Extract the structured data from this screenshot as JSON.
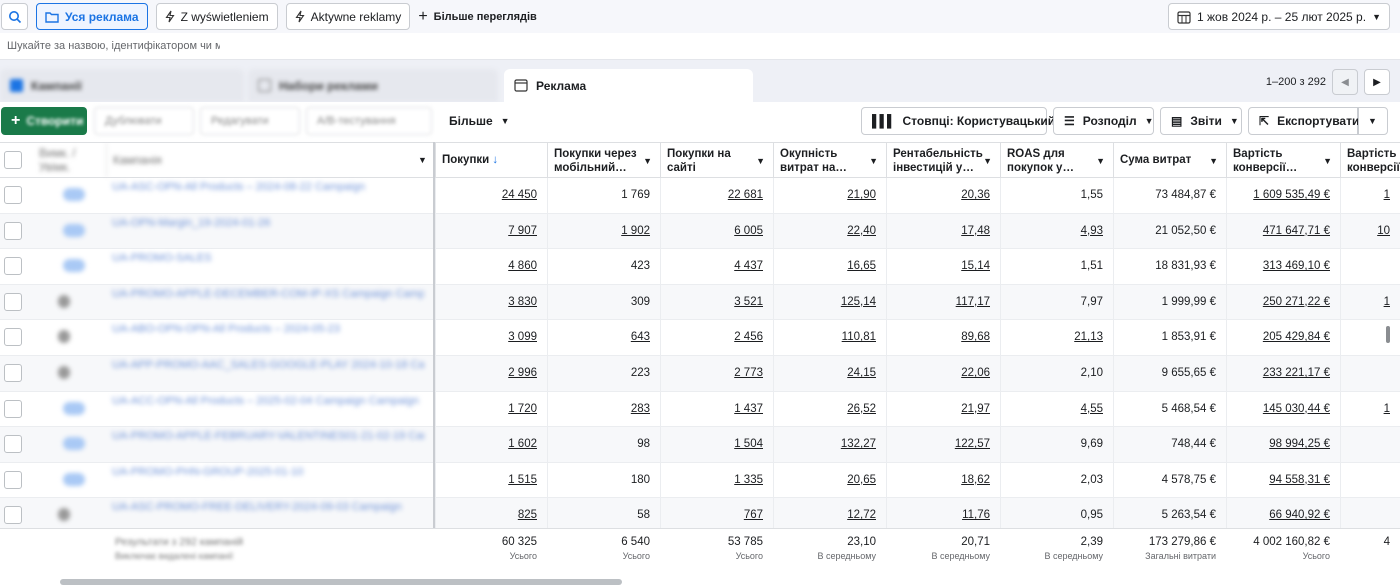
{
  "topbar": {
    "views": [
      {
        "label": "Уся реклама",
        "active": true
      },
      {
        "label": "Z wyświetleniem",
        "active": false
      },
      {
        "label": "Aktywne reklamy",
        "active": false
      }
    ],
    "more_views": "Більше переглядів",
    "date_range": "1 жов 2024 р. – 25 лют 2025 р."
  },
  "search": {
    "placeholder": "Шукайте за назвою, ідентифікатором чи м"
  },
  "tabs": {
    "campaigns": "Кампанії",
    "adsets": "Набори реклами",
    "ads": "Реклама"
  },
  "pager": {
    "range": "1–200 з 292"
  },
  "toolbar": {
    "create": "Створити",
    "duplicate": "Дублювати",
    "edit": "Редагувати",
    "ab_test": "A/B-тестування",
    "more": "Більше",
    "columns": "Стовпці: Користувацький",
    "breakdown": "Розподіл",
    "reports": "Звіти",
    "export": "Експортувати"
  },
  "table": {
    "blurred_headers": {
      "status": "Вимк. / Увімк.",
      "campaign": "Кампанія"
    },
    "headers": {
      "purchases": "Покупки",
      "mobile_purchases_1": "Покупки через",
      "mobile_purchases_2": "мобільний…",
      "site_purchases_1": "Покупки на",
      "site_purchases_2": "сайті",
      "roas_1": "Окупність",
      "roas_2": "витрат на…",
      "roi_1": "Рентабельність",
      "roi_2": "інвестицій у…",
      "roas_p_1": "ROAS для",
      "roas_p_2": "покупок у…",
      "spend": "Сума витрат",
      "conv_value_1": "Вартість",
      "conv_value_2": "конверсії…",
      "conv_value2_1": "Вартість",
      "conv_value2_2": "конверсії…"
    },
    "rows": [
      {
        "on": true,
        "name": "UA-ASC-OPN-All Products – 2024-08-22 Campaign",
        "purchases": "24 450",
        "mobile": "1 769",
        "site": "22 681",
        "roas": "21,90",
        "roi": "20,36",
        "roas_p": "1,55",
        "spend": "73 484,87 €",
        "value": "1 609 535,49 €",
        "value2": "1"
      },
      {
        "on": true,
        "name": "UA-OPN-Margin_19-2024-01-26",
        "purchases": "7 907",
        "mobile": "1 902",
        "site": "6 005",
        "roas": "22,40",
        "roi": "17,48",
        "roas_p": "4,93",
        "spend": "21 052,50 €",
        "value": "471 647,71 €",
        "value2": "10"
      },
      {
        "on": true,
        "name": "UA-PROMO-SALES",
        "purchases": "4 860",
        "mobile": "423",
        "site": "4 437",
        "roas": "16,65",
        "roi": "15,14",
        "roas_p": "1,51",
        "spend": "18 831,93 €",
        "value": "313 469,10 €",
        "value2": ""
      },
      {
        "on": false,
        "name": "UA-PROMO-APPLE-DECEMBER-COM-IP-XS Campaign Campaign",
        "purchases": "3 830",
        "mobile": "309",
        "site": "3 521",
        "roas": "125,14",
        "roi": "117,17",
        "roas_p": "7,97",
        "spend": "1 999,99 €",
        "value": "250 271,22 €",
        "value2": "1"
      },
      {
        "on": false,
        "name": "UA-ABO-OPN-OPN-All Products – 2024-05-23",
        "purchases": "3 099",
        "mobile": "643",
        "site": "2 456",
        "roas": "110,81",
        "roi": "89,68",
        "roas_p": "21,13",
        "spend": "1 853,91 €",
        "value": "205 429,84 €",
        "value2": ""
      },
      {
        "on": false,
        "name": "UA-APP-PROMO-AAC_SALES-GOOGLE-PLAY 2024-10-18 Campaign",
        "purchases": "2 996",
        "mobile": "223",
        "site": "2 773",
        "roas": "24,15",
        "roi": "22,06",
        "roas_p": "2,10",
        "spend": "9 655,65 €",
        "value": "233 221,17 €",
        "value2": ""
      },
      {
        "on": true,
        "name": "UA-ACC-OPN-All Products – 2025-02-04 Campaign Campaign",
        "purchases": "1 720",
        "mobile": "283",
        "site": "1 437",
        "roas": "26,52",
        "roi": "21,97",
        "roas_p": "4,55",
        "spend": "5 468,54 €",
        "value": "145 030,44 €",
        "value2": "1"
      },
      {
        "on": true,
        "name": "UA-PROMO-APPLE-FEBRUARY-VALENTINES01-21-02-19 Campaign",
        "purchases": "1 602",
        "mobile": "98",
        "site": "1 504",
        "roas": "132,27",
        "roi": "122,57",
        "roas_p": "9,69",
        "spend": "748,44 €",
        "value": "98 994,25 €",
        "value2": ""
      },
      {
        "on": true,
        "name": "UA-PROMO-PHN-GROUP-2025-01-10",
        "purchases": "1 515",
        "mobile": "180",
        "site": "1 335",
        "roas": "20,65",
        "roi": "18,62",
        "roas_p": "2,03",
        "spend": "4 578,75 €",
        "value": "94 558,31 €",
        "value2": ""
      },
      {
        "on": false,
        "name": "UA-ASC-PROMO-FREE-DELIVERY-2024-09-03 Campaign",
        "purchases": "825",
        "mobile": "58",
        "site": "767",
        "roas": "12,72",
        "roi": "11,76",
        "roas_p": "0,95",
        "spend": "5 263,54 €",
        "value": "66 940,92 €",
        "value2": ""
      }
    ],
    "footer": {
      "blur_line1": "Результати з 292 кампаній",
      "blur_line2": "Виключає видалені кампанії",
      "purchases": "60 325",
      "purchases_sub": "Усього",
      "mobile": "6 540",
      "mobile_sub": "Усього",
      "site": "53 785",
      "site_sub": "Усього",
      "roas": "23,10",
      "roas_sub": "В середньому",
      "roi": "20,71",
      "roi_sub": "В середньому",
      "roas_p": "2,39",
      "roas_p_sub": "В середньому",
      "spend": "173 279,86 €",
      "spend_sub": "Загальні витрати",
      "value": "4 002 160,82 €",
      "value_sub": "Усього",
      "value2": "4"
    }
  },
  "colors": {
    "accent": "#1b74e4",
    "create": "#1a7a49"
  }
}
